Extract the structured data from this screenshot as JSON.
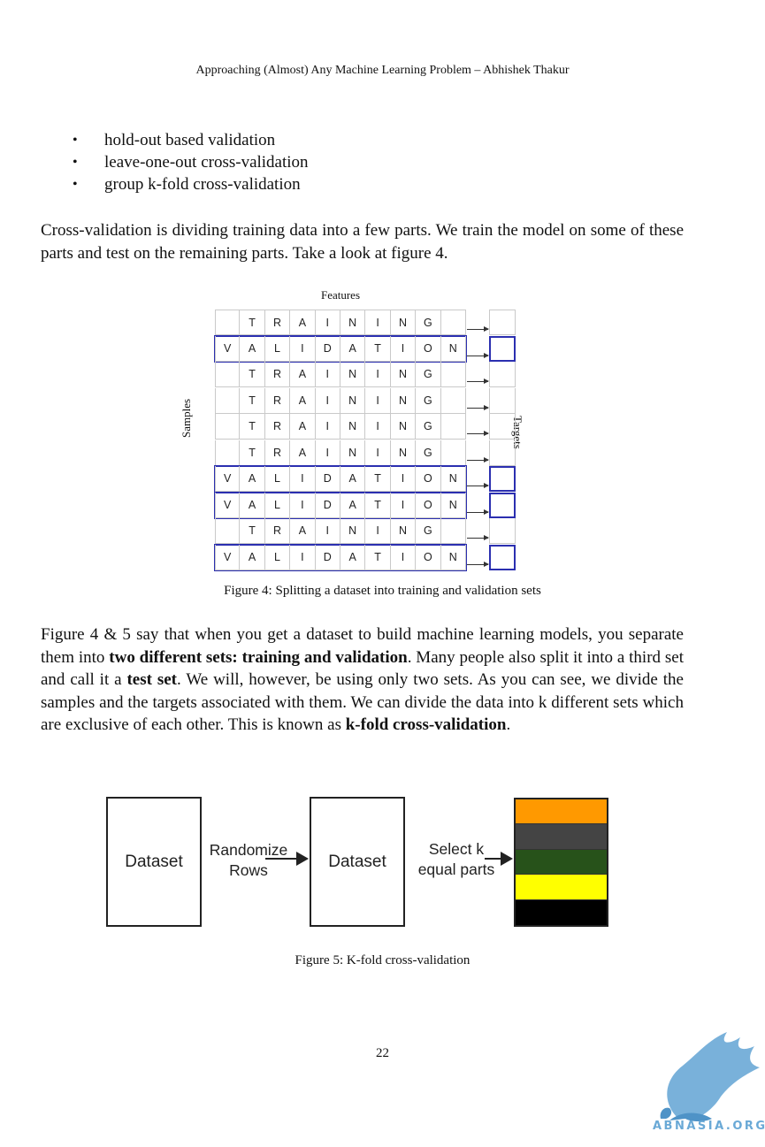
{
  "header": {
    "title": "Approaching (Almost) Any Machine Learning Problem – Abhishek Thakur"
  },
  "bullets": [
    "hold-out based validation",
    "leave-one-out cross-validation",
    "group k-fold cross-validation"
  ],
  "paragraph1": "Cross-validation is dividing training data into a few parts. We train the model on some of these parts and test on the remaining parts. Take a look at figure 4.",
  "figure4": {
    "features_label": "Features",
    "samples_label": "Samples",
    "targets_label": "Targets",
    "training_word": "TRAINING",
    "validation_word": "VALIDATION",
    "rows": [
      "training",
      "validation",
      "training",
      "training",
      "training",
      "training",
      "validation",
      "validation",
      "training",
      "validation"
    ],
    "caption": "Figure 4: Splitting a dataset into training and validation sets",
    "validation_color": "#2b2fb0"
  },
  "paragraph2": {
    "part1": "Figure 4 & 5 say that when you get a dataset to build machine learning models, you separate them into ",
    "bold1": "two different sets: training and validation",
    "part2": ". Many people also split it into a third set and call it a ",
    "bold2": "test set",
    "part3": ". We will, however, be using only two sets. As you can see, we divide the samples and the targets associated with them. We can divide the data into k different sets which are exclusive of each other. This is known as ",
    "bold3": "k-fold cross-validation",
    "part4": "."
  },
  "figure5": {
    "box1_label": "Dataset",
    "arrow1_line1": "Randomize",
    "arrow1_line2": "Rows",
    "box2_label": "Dataset",
    "arrow2_line1": "Select k",
    "arrow2_line2": "equal parts",
    "parts_colors": [
      "#ff9900",
      "#444444",
      "#27521a",
      "#ffff00",
      "#000000"
    ],
    "caption": "Figure 5: K-fold cross-validation"
  },
  "page_number": "22",
  "logo": {
    "text": "ABNASIA.ORG",
    "color": "#6aa9d6"
  }
}
